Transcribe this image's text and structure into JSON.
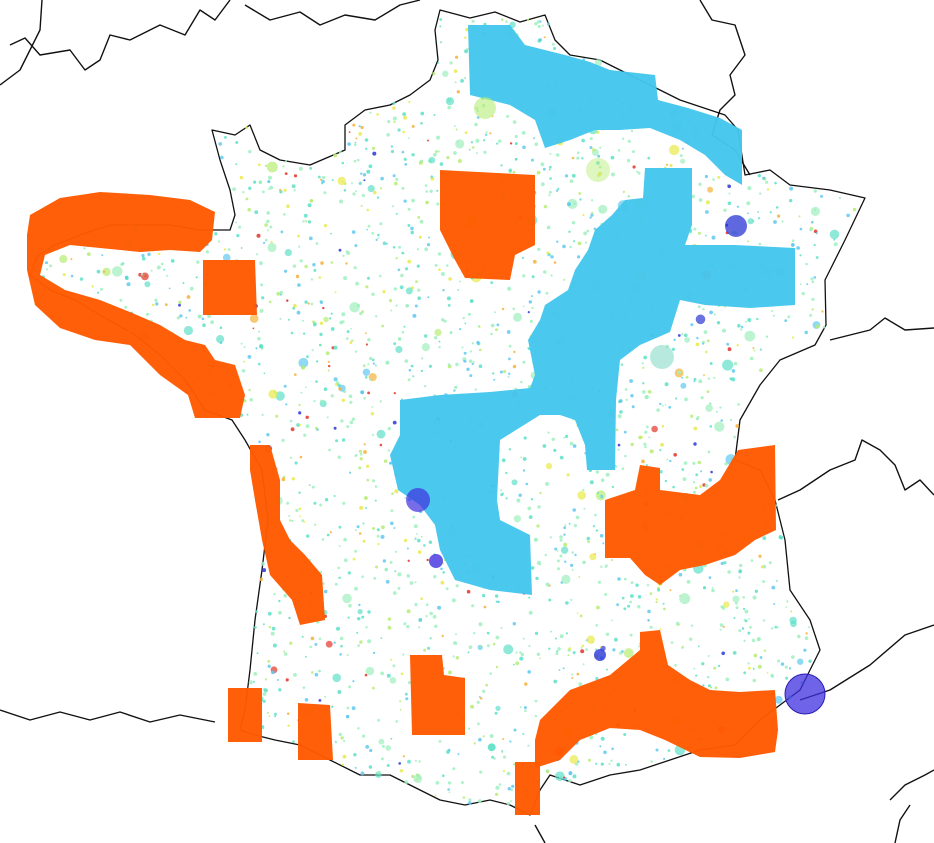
{
  "map": {
    "zone_colors": {
      "hot": "#ff5a00",
      "cold": "#45c6ec"
    },
    "point_palette": [
      "#9ff0bf",
      "#5ee0c8",
      "#61c9ef",
      "#b6ec74",
      "#e9ea4c",
      "#f5b23a",
      "#e2342a",
      "#2b36d6"
    ],
    "large_marker_color": "#3f2fe0",
    "border_color": "#111111",
    "background": "#ffffff"
  }
}
